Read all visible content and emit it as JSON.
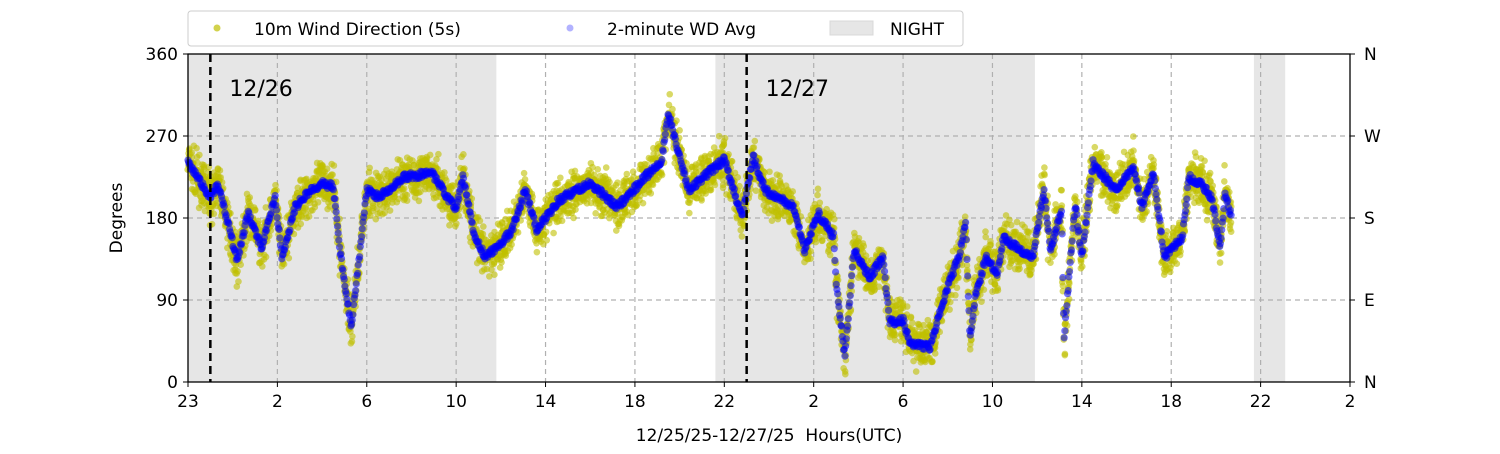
{
  "chart_data": {
    "type": "scatter",
    "xlabel": "12/25/25-12/27/25  Hours(UTC)",
    "ylabel": "Degrees",
    "xlim": [
      0,
      52
    ],
    "ylim": [
      0,
      360
    ],
    "x_unit": "hours since start of plot",
    "x_ticks": [
      0,
      4,
      8,
      12,
      16,
      20,
      24,
      28,
      32,
      36,
      40,
      44,
      48,
      52
    ],
    "x_tick_labels": [
      "23",
      "2",
      "6",
      "10",
      "14",
      "18",
      "22",
      "2",
      "6",
      "10",
      "14",
      "18",
      "22",
      "2"
    ],
    "y_ticks": [
      0,
      90,
      180,
      270,
      360
    ],
    "y_tick_labels": [
      "0",
      "90",
      "180",
      "270",
      "360"
    ],
    "y2_tick_labels": [
      "N",
      "E",
      "S",
      "W",
      "N"
    ],
    "grid": true,
    "legend": {
      "placement": "top-left, above plot",
      "entries": [
        "10m Wind Direction (5s)",
        "2-minute WD Avg",
        "NIGHT"
      ]
    },
    "night_periods": [
      [
        0,
        13.8
      ],
      [
        23.6,
        37.9
      ],
      [
        47.7,
        49.1
      ]
    ],
    "date_markers": [
      {
        "x": 1.0,
        "label": "12/26"
      },
      {
        "x": 25.0,
        "label": "12/27"
      }
    ],
    "colors": {
      "raw": "#bfbf00",
      "avg": "#0000ff",
      "night": "#e6e6e6"
    },
    "series": [
      {
        "name": "2-minute WD Avg",
        "x": [
          0,
          1.0,
          1.36,
          2.2,
          2.7,
          3.3,
          3.9,
          4.2,
          4.8,
          5.5,
          6.0,
          6.5,
          6.8,
          7.3,
          7.7,
          8.0,
          8.5,
          9.7,
          10.9,
          12.0,
          12.3,
          12.8,
          13.3,
          14.0,
          14.5,
          15.1,
          15.6,
          16.6,
          18.0,
          19.2,
          20.2,
          21.2,
          21.5,
          21.9,
          22.4,
          24.0,
          24.8,
          25.3,
          25.8,
          27.1,
          27.6,
          28.2,
          28.9,
          29.0,
          29.4,
          29.8,
          30.5,
          31.1,
          31.4,
          32.0,
          32.3,
          33.2,
          33.6,
          34.1,
          34.5,
          34.8,
          35.0,
          35.2,
          35.7,
          36.2,
          36.5,
          37.2,
          37.8,
          38.3,
          38.6,
          39.1,
          39.2,
          39.7,
          40.0,
          40.5,
          41.5,
          42.3,
          42.7,
          43.2,
          43.7,
          44.5,
          44.8,
          45.3,
          45.8,
          46.2,
          46.4,
          46.7
        ],
        "y": [
          240,
          203,
          216,
          134,
          185,
          148,
          203,
          137,
          192,
          211,
          218,
          214,
          145,
          60,
          145,
          211,
          203,
          225,
          229,
          189,
          225,
          163,
          137,
          152,
          167,
          211,
          167,
          200,
          218,
          192,
          218,
          244,
          295,
          255,
          211,
          244,
          181,
          247,
          211,
          192,
          145,
          185,
          159,
          108,
          27,
          145,
          115,
          137,
          65,
          68,
          43,
          38,
          71,
          112,
          137,
          174,
          46,
          90,
          137,
          119,
          159,
          145,
          137,
          211,
          145,
          189,
          46,
          196,
          137,
          240,
          211,
          236,
          192,
          229,
          137,
          159,
          225,
          218,
          203,
          148,
          207,
          181
        ]
      },
      {
        "name": "10m Wind Direction (5s)",
        "follows": "2-minute WD Avg",
        "spread_deg": 22
      }
    ]
  }
}
